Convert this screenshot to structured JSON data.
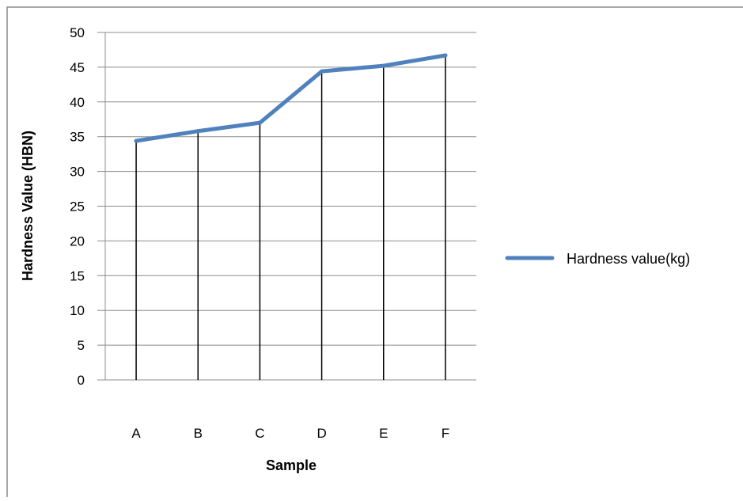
{
  "chart_data": {
    "type": "line",
    "title": "",
    "xlabel": "Sample",
    "ylabel": "Hardness Value (HBN)",
    "categories": [
      "A",
      "B",
      "C",
      "D",
      "E",
      "F"
    ],
    "series": [
      {
        "name": "Hardness value(kg)",
        "values": [
          34.4,
          35.8,
          37.0,
          44.4,
          45.2,
          46.7
        ]
      }
    ],
    "ylim": [
      0,
      50
    ],
    "yticks": [
      0,
      5,
      10,
      15,
      20,
      25,
      30,
      35,
      40,
      45,
      50
    ],
    "grid": true,
    "drop_lines": true,
    "legend_position": "right",
    "series_color": "#4F81BD"
  }
}
